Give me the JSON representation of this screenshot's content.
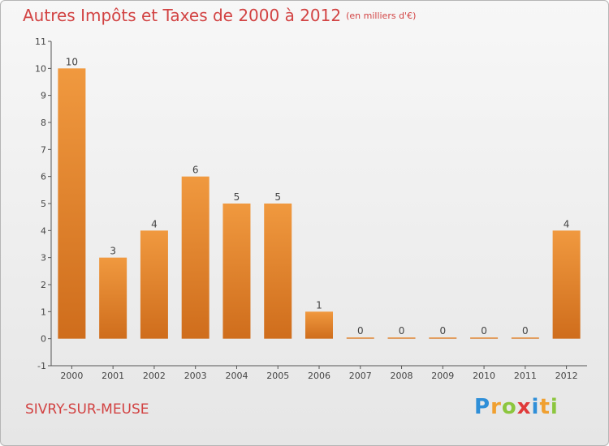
{
  "title": "Autres Impôts et Taxes de 2000 à 2012",
  "subtitle": "(en milliers d'€)",
  "town": "SIVRY-SUR-MEUSE",
  "logo": {
    "letters": [
      "P",
      "r",
      "o",
      "x",
      "i",
      "t",
      "i"
    ],
    "colors": [
      "#2f8fd8",
      "#f0a030",
      "#8cc63e",
      "#e03a3a",
      "#2f8fd8",
      "#f0a030",
      "#8cc63e"
    ]
  },
  "colors": {
    "bar": "#f0993f",
    "bar_dark": "#cf6d1c",
    "axis": "#555555",
    "title": "#d24343"
  },
  "chart_data": {
    "type": "bar",
    "title": "Autres Impôts et Taxes de 2000 à 2012",
    "subtitle": "(en milliers d'€)",
    "categories": [
      "2000",
      "2001",
      "2002",
      "2003",
      "2004",
      "2005",
      "2006",
      "2007",
      "2008",
      "2009",
      "2010",
      "2011",
      "2012"
    ],
    "values": [
      10,
      3,
      4,
      6,
      5,
      5,
      1,
      0,
      0,
      0,
      0,
      0,
      4
    ],
    "data_labels": [
      "10",
      "3",
      "4",
      "6",
      "5",
      "5",
      "1",
      "0",
      "0",
      "0",
      "0",
      "0",
      "4"
    ],
    "y_ticks": [
      "-1",
      "0",
      "1",
      "2",
      "3",
      "4",
      "5",
      "6",
      "7",
      "8",
      "9",
      "10",
      "11"
    ],
    "ylim": [
      -1,
      11
    ],
    "grid": false,
    "legend": "none"
  }
}
